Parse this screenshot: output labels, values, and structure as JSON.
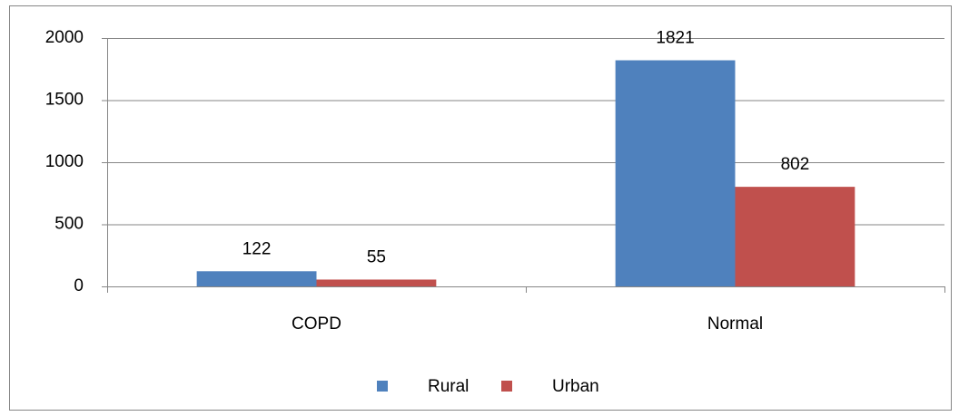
{
  "chart_data": {
    "type": "bar",
    "categories": [
      "COPD",
      "Normal"
    ],
    "series": [
      {
        "name": "Rural",
        "color": "#4f81bd",
        "values": [
          122,
          1821
        ]
      },
      {
        "name": "Urban",
        "color": "#c0504d",
        "values": [
          55,
          802
        ]
      }
    ],
    "ylim": [
      0,
      2000
    ],
    "yticks": [
      0,
      500,
      1000,
      1500,
      2000
    ],
    "grid": true,
    "legend": "bottom"
  }
}
